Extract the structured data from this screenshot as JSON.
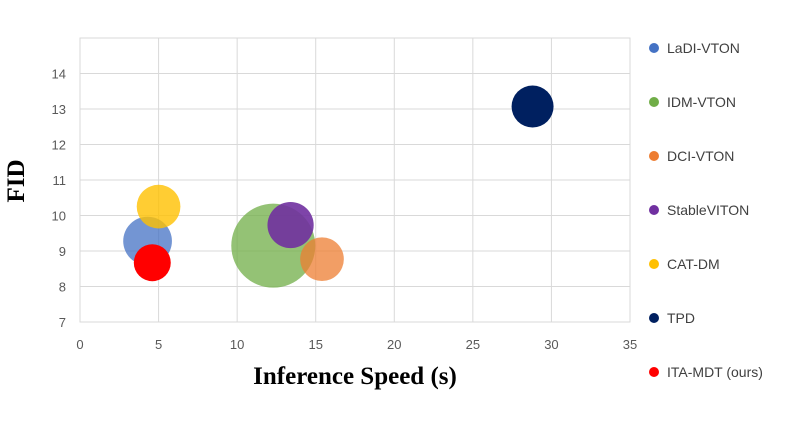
{
  "chart_data": {
    "type": "bubble",
    "title": "",
    "xlabel": "Inference Speed (s)",
    "ylabel": "FID",
    "xlim": [
      0,
      35
    ],
    "ylim": [
      7,
      15
    ],
    "xticks": [
      0,
      5,
      10,
      15,
      20,
      25,
      30,
      35
    ],
    "yticks": [
      7,
      8,
      9,
      10,
      11,
      12,
      13,
      14
    ],
    "grid": true,
    "legend_position": "right",
    "series": [
      {
        "name": "LaDI-VTON",
        "color": "#4472C4",
        "opacity": 0.75,
        "x": 4.3,
        "y": 9.28,
        "size": 0.58
      },
      {
        "name": "IDM-VTON",
        "color": "#70AD47",
        "opacity": 0.75,
        "x": 12.3,
        "y": 9.15,
        "size": 1.0
      },
      {
        "name": "DCI-VTON",
        "color": "#ED7D31",
        "opacity": 0.75,
        "x": 15.4,
        "y": 8.77,
        "size": 0.52
      },
      {
        "name": "StableVITON",
        "color": "#7030A0",
        "opacity": 0.9,
        "x": 13.4,
        "y": 9.73,
        "size": 0.55
      },
      {
        "name": "CAT-DM",
        "color": "#FFC000",
        "opacity": 0.8,
        "x": 5.0,
        "y": 10.25,
        "size": 0.52
      },
      {
        "name": "TPD",
        "color": "#002060",
        "opacity": 1.0,
        "x": 28.8,
        "y": 13.07,
        "size": 0.5
      },
      {
        "name": "ITA-MDT (ours)",
        "color": "#FF0000",
        "opacity": 1.0,
        "x": 4.6,
        "y": 8.67,
        "size": 0.44
      }
    ]
  }
}
